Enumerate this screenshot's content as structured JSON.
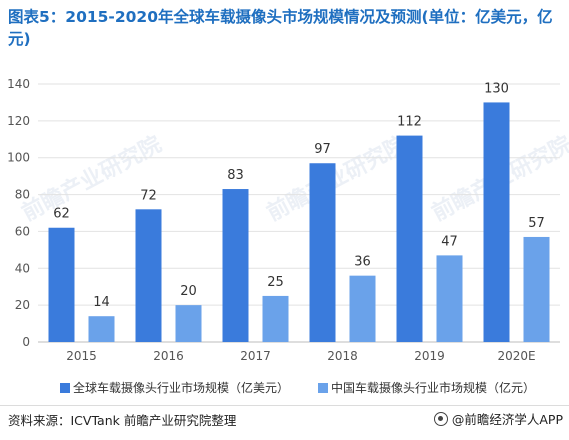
{
  "title": "图表5：2015-2020年全球车载摄像头市场规模情况及预测(单位：亿美元，亿元)",
  "source": "资料来源：ICVTank 前瞻产业研究院整理",
  "brand": "@前瞻经济学人APP",
  "watermark": "前瞻产业研究院",
  "colors": {
    "series1": "#3a7bdc",
    "series2": "#6aa2ea",
    "grid": "#e2e2e2",
    "axis": "#bdbdbd",
    "title": "#1f6fc0"
  },
  "chart_data": {
    "type": "bar",
    "title": "图表5：2015-2020年全球车载摄像头市场规模情况及预测(单位：亿美元，亿元)",
    "categories": [
      "2015",
      "2016",
      "2017",
      "2018",
      "2019",
      "2020E"
    ],
    "series": [
      {
        "name": "全球车载摄像头行业市场规模（亿美元）",
        "values": [
          62,
          72,
          83,
          97,
          112,
          130
        ]
      },
      {
        "name": "中国车载摄像头行业市场规模（亿元）",
        "values": [
          14,
          20,
          25,
          36,
          47,
          57
        ]
      }
    ],
    "ylim": [
      0,
      140
    ],
    "yticks": [
      0,
      20,
      40,
      60,
      80,
      100,
      120,
      140
    ],
    "grid": true,
    "legend": "bottom"
  }
}
